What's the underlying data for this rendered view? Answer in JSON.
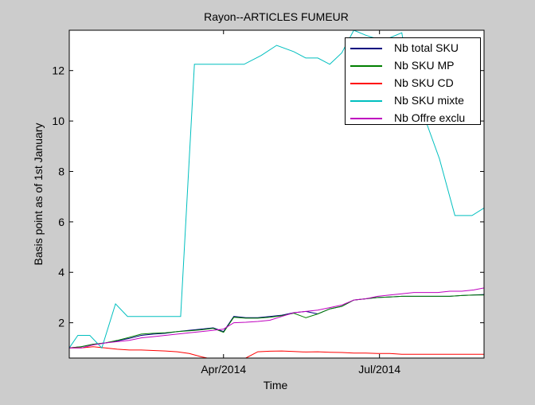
{
  "chart_data": {
    "type": "line",
    "title": "Rayon--ARTICLES FUMEUR",
    "xlabel": "Time",
    "ylabel": "Basis point as of 1st January",
    "ylim": [
      0.6,
      13.6
    ],
    "xlim": [
      "2014-01-01",
      "2014-08-31"
    ],
    "yticks": [
      2,
      4,
      6,
      8,
      10,
      12
    ],
    "xticks": [
      {
        "date": "2014-04-01",
        "label": "Apr/2014"
      },
      {
        "date": "2014-07-01",
        "label": "Jul/2014"
      }
    ],
    "grid": false,
    "legend_position": "top-right",
    "series": [
      {
        "name": "Nb total SKU",
        "color": "#00007f",
        "points": [
          [
            "2014-01-01",
            1.0
          ],
          [
            "2014-01-08",
            1.05
          ],
          [
            "2014-01-15",
            1.15
          ],
          [
            "2014-01-22",
            1.2
          ],
          [
            "2014-01-29",
            1.28
          ],
          [
            "2014-02-05",
            1.38
          ],
          [
            "2014-02-12",
            1.5
          ],
          [
            "2014-02-19",
            1.55
          ],
          [
            "2014-02-26",
            1.58
          ],
          [
            "2014-03-05",
            1.65
          ],
          [
            "2014-03-12",
            1.7
          ],
          [
            "2014-03-19",
            1.75
          ],
          [
            "2014-03-26",
            1.8
          ],
          [
            "2014-04-01",
            1.65
          ],
          [
            "2014-04-07",
            2.25
          ],
          [
            "2014-04-14",
            2.2
          ],
          [
            "2014-04-21",
            2.2
          ],
          [
            "2014-04-28",
            2.25
          ],
          [
            "2014-05-05",
            2.3
          ],
          [
            "2014-05-12",
            2.4
          ],
          [
            "2014-05-19",
            2.45
          ],
          [
            "2014-05-26",
            2.35
          ],
          [
            "2014-06-02",
            2.55
          ],
          [
            "2014-06-09",
            2.65
          ],
          [
            "2014-06-16",
            2.9
          ],
          [
            "2014-06-23",
            2.95
          ],
          [
            "2014-06-30",
            3.0
          ],
          [
            "2014-07-07",
            3.02
          ],
          [
            "2014-07-14",
            3.05
          ],
          [
            "2014-07-21",
            3.05
          ],
          [
            "2014-07-28",
            3.05
          ],
          [
            "2014-08-04",
            3.05
          ],
          [
            "2014-08-11",
            3.05
          ],
          [
            "2014-08-18",
            3.08
          ],
          [
            "2014-08-25",
            3.1
          ],
          [
            "2014-08-31",
            3.12
          ]
        ]
      },
      {
        "name": "Nb SKU MP",
        "color": "#007f00",
        "points": [
          [
            "2014-01-01",
            1.0
          ],
          [
            "2014-01-08",
            1.05
          ],
          [
            "2014-01-15",
            1.15
          ],
          [
            "2014-01-22",
            1.2
          ],
          [
            "2014-01-29",
            1.3
          ],
          [
            "2014-02-05",
            1.42
          ],
          [
            "2014-02-12",
            1.55
          ],
          [
            "2014-02-19",
            1.58
          ],
          [
            "2014-02-26",
            1.6
          ],
          [
            "2014-03-05",
            1.65
          ],
          [
            "2014-03-12",
            1.68
          ],
          [
            "2014-03-19",
            1.72
          ],
          [
            "2014-03-26",
            1.78
          ],
          [
            "2014-04-01",
            1.62
          ],
          [
            "2014-04-07",
            2.22
          ],
          [
            "2014-04-14",
            2.18
          ],
          [
            "2014-04-21",
            2.18
          ],
          [
            "2014-04-28",
            2.22
          ],
          [
            "2014-05-05",
            2.28
          ],
          [
            "2014-05-12",
            2.38
          ],
          [
            "2014-05-19",
            2.2
          ],
          [
            "2014-05-26",
            2.35
          ],
          [
            "2014-06-02",
            2.55
          ],
          [
            "2014-06-09",
            2.65
          ],
          [
            "2014-06-16",
            2.9
          ],
          [
            "2014-06-23",
            2.95
          ],
          [
            "2014-06-30",
            3.0
          ],
          [
            "2014-07-07",
            3.02
          ],
          [
            "2014-07-14",
            3.05
          ],
          [
            "2014-07-21",
            3.05
          ],
          [
            "2014-07-28",
            3.05
          ],
          [
            "2014-08-04",
            3.05
          ],
          [
            "2014-08-11",
            3.05
          ],
          [
            "2014-08-18",
            3.08
          ],
          [
            "2014-08-25",
            3.1
          ],
          [
            "2014-08-31",
            3.1
          ]
        ]
      },
      {
        "name": "Nb SKU CD",
        "color": "#ff0000",
        "points": [
          [
            "2014-01-01",
            1.0
          ],
          [
            "2014-01-08",
            1.0
          ],
          [
            "2014-01-15",
            1.05
          ],
          [
            "2014-01-22",
            1.0
          ],
          [
            "2014-01-29",
            0.95
          ],
          [
            "2014-02-05",
            0.92
          ],
          [
            "2014-02-12",
            0.92
          ],
          [
            "2014-02-19",
            0.9
          ],
          [
            "2014-02-26",
            0.88
          ],
          [
            "2014-03-05",
            0.85
          ],
          [
            "2014-03-12",
            0.78
          ],
          [
            "2014-03-19",
            0.65
          ],
          [
            "2014-03-26",
            0.55
          ],
          [
            "2014-04-01",
            0.55
          ],
          [
            "2014-04-07",
            0.58
          ],
          [
            "2014-04-14",
            0.6
          ],
          [
            "2014-04-21",
            0.85
          ],
          [
            "2014-04-28",
            0.87
          ],
          [
            "2014-05-05",
            0.88
          ],
          [
            "2014-05-12",
            0.86
          ],
          [
            "2014-05-19",
            0.84
          ],
          [
            "2014-05-26",
            0.85
          ],
          [
            "2014-06-02",
            0.83
          ],
          [
            "2014-06-09",
            0.82
          ],
          [
            "2014-06-16",
            0.8
          ],
          [
            "2014-06-23",
            0.8
          ],
          [
            "2014-06-30",
            0.78
          ],
          [
            "2014-07-07",
            0.78
          ],
          [
            "2014-07-14",
            0.75
          ],
          [
            "2014-07-21",
            0.75
          ],
          [
            "2014-07-28",
            0.75
          ],
          [
            "2014-08-04",
            0.75
          ],
          [
            "2014-08-11",
            0.75
          ],
          [
            "2014-08-18",
            0.75
          ],
          [
            "2014-08-25",
            0.75
          ],
          [
            "2014-08-31",
            0.75
          ]
        ]
      },
      {
        "name": "Nb SKU mixte",
        "color": "#00bfbf",
        "points": [
          [
            "2014-01-01",
            1.0
          ],
          [
            "2014-01-06",
            1.5
          ],
          [
            "2014-01-13",
            1.5
          ],
          [
            "2014-01-20",
            1.0
          ],
          [
            "2014-01-28",
            2.75
          ],
          [
            "2014-02-04",
            2.25
          ],
          [
            "2014-02-14",
            2.25
          ],
          [
            "2014-02-24",
            2.25
          ],
          [
            "2014-03-07",
            2.25
          ],
          [
            "2014-03-15",
            12.25
          ],
          [
            "2014-03-25",
            12.25
          ],
          [
            "2014-04-05",
            12.25
          ],
          [
            "2014-04-13",
            12.25
          ],
          [
            "2014-04-23",
            12.6
          ],
          [
            "2014-05-02",
            13.0
          ],
          [
            "2014-05-12",
            12.75
          ],
          [
            "2014-05-19",
            12.5
          ],
          [
            "2014-05-26",
            12.5
          ],
          [
            "2014-06-02",
            12.25
          ],
          [
            "2014-06-09",
            12.7
          ],
          [
            "2014-06-16",
            13.6
          ],
          [
            "2014-06-23",
            13.4
          ],
          [
            "2014-06-30",
            13.25
          ],
          [
            "2014-07-07",
            13.3
          ],
          [
            "2014-07-14",
            13.5
          ],
          [
            "2014-07-21",
            10.7
          ],
          [
            "2014-07-28",
            10.0
          ],
          [
            "2014-08-05",
            8.5
          ],
          [
            "2014-08-14",
            6.25
          ],
          [
            "2014-08-24",
            6.25
          ],
          [
            "2014-08-31",
            6.55
          ]
        ]
      },
      {
        "name": "Nb Offre exclu",
        "color": "#bf00bf",
        "points": [
          [
            "2014-01-01",
            1.0
          ],
          [
            "2014-01-08",
            1.0
          ],
          [
            "2014-01-15",
            1.12
          ],
          [
            "2014-01-22",
            1.2
          ],
          [
            "2014-01-29",
            1.25
          ],
          [
            "2014-02-05",
            1.3
          ],
          [
            "2014-02-12",
            1.4
          ],
          [
            "2014-02-19",
            1.45
          ],
          [
            "2014-02-26",
            1.5
          ],
          [
            "2014-03-05",
            1.55
          ],
          [
            "2014-03-12",
            1.6
          ],
          [
            "2014-03-19",
            1.65
          ],
          [
            "2014-03-26",
            1.7
          ],
          [
            "2014-04-01",
            1.75
          ],
          [
            "2014-04-07",
            2.0
          ],
          [
            "2014-04-14",
            2.02
          ],
          [
            "2014-04-21",
            2.05
          ],
          [
            "2014-04-28",
            2.1
          ],
          [
            "2014-05-05",
            2.25
          ],
          [
            "2014-05-12",
            2.4
          ],
          [
            "2014-05-19",
            2.45
          ],
          [
            "2014-05-26",
            2.5
          ],
          [
            "2014-06-02",
            2.6
          ],
          [
            "2014-06-09",
            2.7
          ],
          [
            "2014-06-16",
            2.9
          ],
          [
            "2014-06-23",
            2.95
          ],
          [
            "2014-06-30",
            3.05
          ],
          [
            "2014-07-07",
            3.1
          ],
          [
            "2014-07-14",
            3.15
          ],
          [
            "2014-07-21",
            3.2
          ],
          [
            "2014-07-28",
            3.2
          ],
          [
            "2014-08-04",
            3.2
          ],
          [
            "2014-08-11",
            3.25
          ],
          [
            "2014-08-18",
            3.25
          ],
          [
            "2014-08-25",
            3.3
          ],
          [
            "2014-08-31",
            3.38
          ]
        ]
      }
    ]
  }
}
